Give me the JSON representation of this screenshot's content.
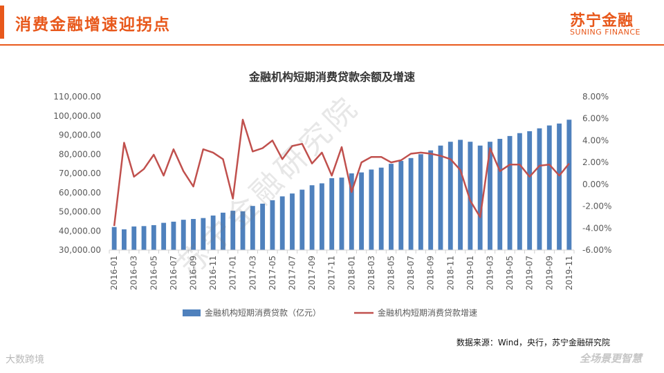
{
  "header": {
    "title": "消费金融增速迎拐点"
  },
  "brand": {
    "name_cn": "苏宁金融",
    "name_en": "SUNING FINANCE"
  },
  "watermark": "苏宁金融研究院",
  "source_note": "数据来源：Wind，央行，苏宁金融研究院",
  "footer": {
    "left": "大数跨境",
    "right": "全场景更智慧"
  },
  "colors": {
    "accent": "#e8581b",
    "bar": "#4f81bd",
    "line": "#c0504d"
  },
  "chart_data": {
    "type": "bar+line",
    "title": "金融机构短期消费贷款余额及增速",
    "legend_position": "bottom",
    "grid": false,
    "x": [
      "2016-01",
      "2016-02",
      "2016-03",
      "2016-04",
      "2016-05",
      "2016-06",
      "2016-07",
      "2016-08",
      "2016-09",
      "2016-10",
      "2016-11",
      "2016-12",
      "2017-01",
      "2017-02",
      "2017-03",
      "2017-04",
      "2017-05",
      "2017-06",
      "2017-07",
      "2017-08",
      "2017-09",
      "2017-10",
      "2017-11",
      "2017-12",
      "2018-01",
      "2018-02",
      "2018-03",
      "2018-04",
      "2018-05",
      "2018-06",
      "2018-07",
      "2018-08",
      "2018-09",
      "2018-10",
      "2018-11",
      "2018-12",
      "2019-01",
      "2019-02",
      "2019-03",
      "2019-04",
      "2019-05",
      "2019-06",
      "2019-07",
      "2019-08",
      "2019-09",
      "2019-10",
      "2019-11"
    ],
    "x_tick_labels": [
      "2016-01",
      "2016-03",
      "2016-05",
      "2016-07",
      "2016-09",
      "2016-11",
      "2017-01",
      "2017-03",
      "2017-05",
      "2017-07",
      "2017-09",
      "2017-11",
      "2018-01",
      "2018-03",
      "2018-05",
      "2018-07",
      "2018-09",
      "2018-11",
      "2019-01",
      "2019-03",
      "2019-05",
      "2019-07",
      "2019-09",
      "2019-11"
    ],
    "y_left": {
      "min": 30000,
      "max": 110000,
      "ticks": [
        "30,000.00",
        "40,000.00",
        "50,000.00",
        "60,000.00",
        "70,000.00",
        "80,000.00",
        "90,000.00",
        "100,000.00",
        "110,000.00"
      ]
    },
    "y_right": {
      "min": -6,
      "max": 8,
      "ticks": [
        "-6.00%",
        "-4.00%",
        "-2.00%",
        "0.00%",
        "2.00%",
        "4.00%",
        "6.00%",
        "8.00%"
      ]
    },
    "series": [
      {
        "name": "金融机构短期消费贷款（亿元）",
        "type": "bar",
        "axis": "left",
        "values": [
          42000,
          40800,
          42300,
          42500,
          43000,
          44200,
          44800,
          45800,
          46200,
          46700,
          48000,
          49500,
          50500,
          50200,
          53000,
          54200,
          56000,
          58000,
          59500,
          61500,
          63800,
          64800,
          67500,
          67800,
          70000,
          70500,
          72000,
          73000,
          75000,
          76500,
          78000,
          80000,
          82000,
          84500,
          86500,
          87500,
          86500,
          84500,
          86500,
          88000,
          89500,
          91000,
          92000,
          93500,
          95000,
          96000,
          98000
        ]
      },
      {
        "name": "金融机构短期消费贷款增速",
        "type": "line",
        "axis": "right",
        "values": [
          -3.8,
          3.8,
          0.7,
          1.4,
          2.7,
          0.8,
          3.2,
          1.2,
          -0.2,
          3.2,
          2.9,
          2.3,
          -1.3,
          5.9,
          3.0,
          3.3,
          4.0,
          2.3,
          3.5,
          3.7,
          1.9,
          2.9,
          0.8,
          3.4,
          -0.7,
          2.0,
          2.5,
          2.5,
          2.0,
          2.2,
          2.8,
          2.9,
          2.8,
          2.6,
          2.3,
          1.3,
          -1.5,
          -3.0,
          3.3,
          1.2,
          1.8,
          1.8,
          0.7,
          1.7,
          1.8,
          0.8,
          1.9
        ]
      }
    ]
  }
}
